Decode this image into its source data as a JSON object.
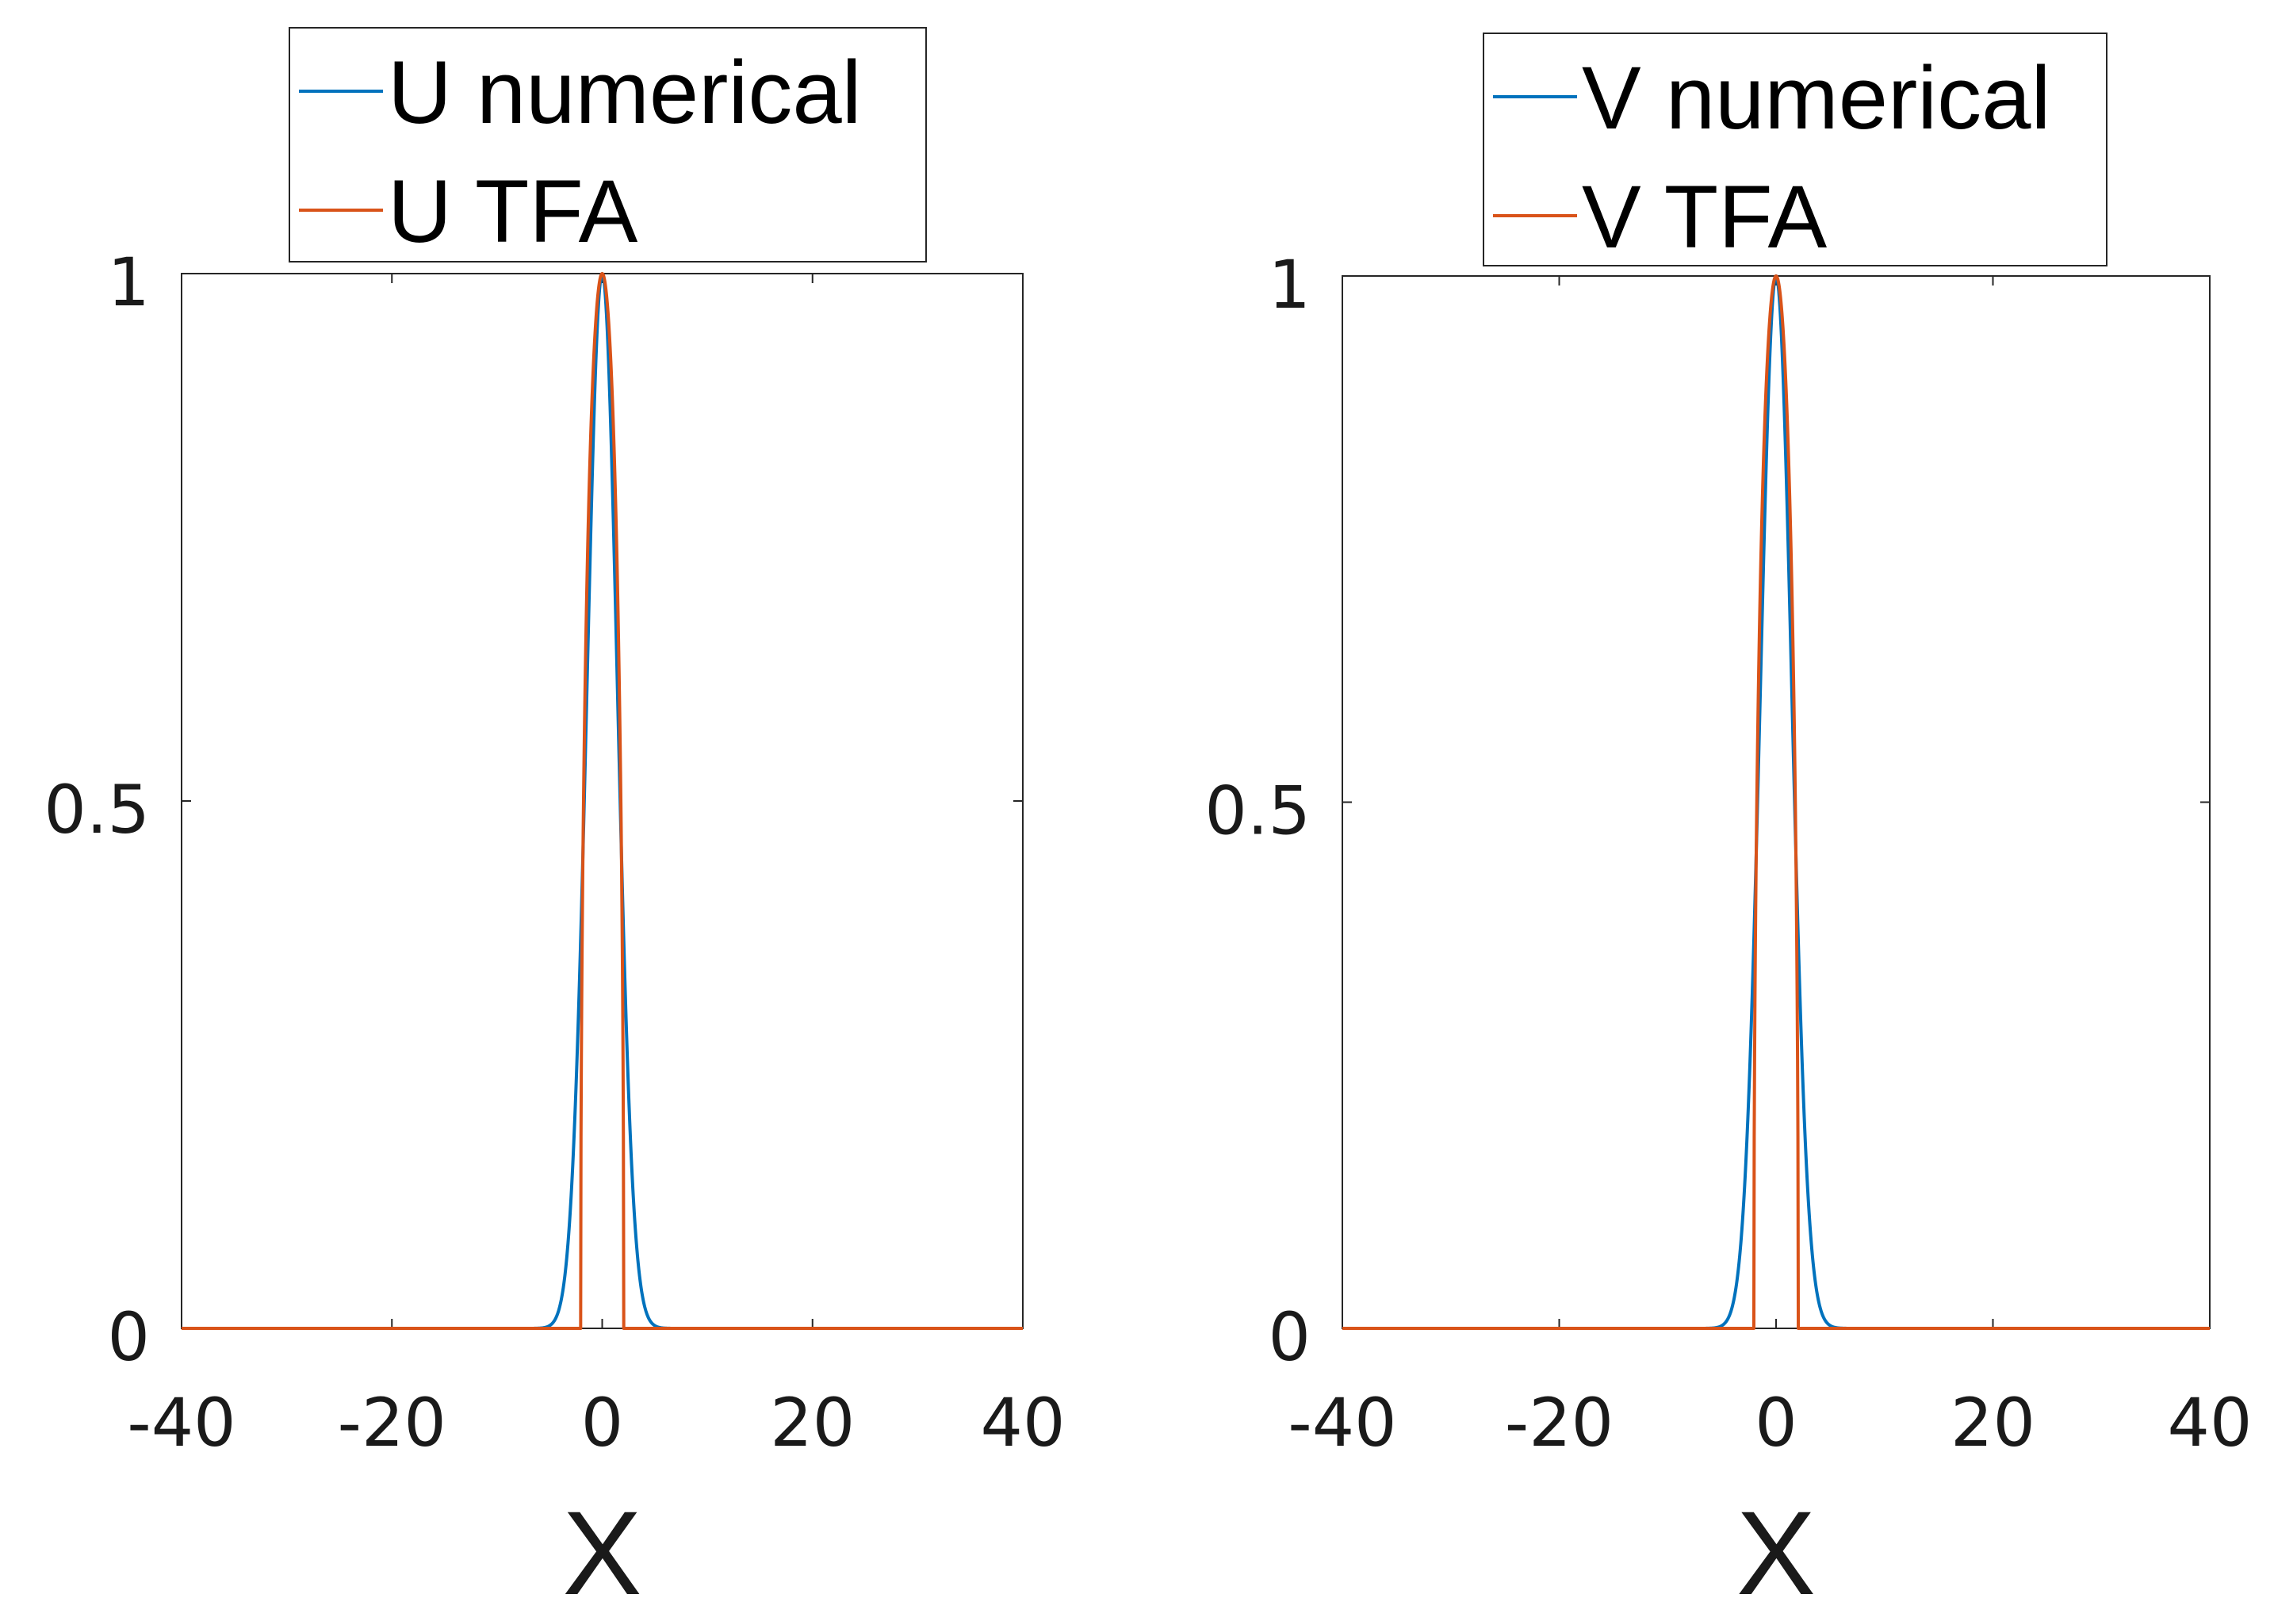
{
  "chart_data": [
    {
      "type": "line",
      "xlabel": "X",
      "ylabel": "",
      "xlim": [
        -40,
        40
      ],
      "ylim": [
        0,
        1
      ],
      "x_ticks": [
        "-40",
        "-20",
        "0",
        "20",
        "40"
      ],
      "y_ticks": [
        "0",
        "0.5",
        "1"
      ],
      "grid": false,
      "legend_position": "top",
      "series": [
        {
          "name": "U numerical",
          "color": "#0072BD",
          "model": "gaussian",
          "width": 2.05
        },
        {
          "name": "U TFA",
          "color": "#D95319",
          "model": "thomas-fermi",
          "radius": 2.05
        }
      ]
    },
    {
      "type": "line",
      "xlabel": "X",
      "ylabel": "",
      "xlim": [
        -40,
        40
      ],
      "ylim": [
        0,
        1
      ],
      "x_ticks": [
        "-40",
        "-20",
        "0",
        "20",
        "40"
      ],
      "y_ticks": [
        "0",
        "0.5",
        "1"
      ],
      "grid": false,
      "legend_position": "top",
      "series": [
        {
          "name": "V numerical",
          "color": "#0072BD",
          "model": "gaussian",
          "width": 2.05
        },
        {
          "name": "V TFA",
          "color": "#D95319",
          "model": "thomas-fermi",
          "radius": 2.05
        }
      ]
    }
  ]
}
